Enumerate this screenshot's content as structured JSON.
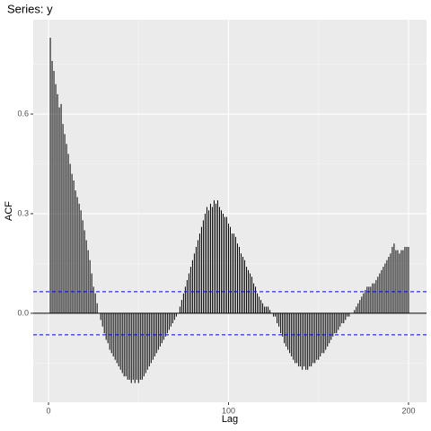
{
  "chart_data": {
    "type": "acf",
    "title": "Series: y",
    "xlabel": "Lag",
    "ylabel": "ACF",
    "x": [
      1,
      2,
      3,
      4,
      5,
      6,
      7,
      8,
      9,
      10,
      11,
      12,
      13,
      14,
      15,
      16,
      17,
      18,
      19,
      20,
      21,
      22,
      23,
      24,
      25,
      26,
      27,
      28,
      29,
      30,
      31,
      32,
      33,
      34,
      35,
      36,
      37,
      38,
      39,
      40,
      41,
      42,
      43,
      44,
      45,
      46,
      47,
      48,
      49,
      50,
      51,
      52,
      53,
      54,
      55,
      56,
      57,
      58,
      59,
      60,
      61,
      62,
      63,
      64,
      65,
      66,
      67,
      68,
      69,
      70,
      71,
      72,
      73,
      74,
      75,
      76,
      77,
      78,
      79,
      80,
      81,
      82,
      83,
      84,
      85,
      86,
      87,
      88,
      89,
      90,
      91,
      92,
      93,
      94,
      95,
      96,
      97,
      98,
      99,
      100,
      101,
      102,
      103,
      104,
      105,
      106,
      107,
      108,
      109,
      110,
      111,
      112,
      113,
      114,
      115,
      116,
      117,
      118,
      119,
      120,
      121,
      122,
      123,
      124,
      125,
      126,
      127,
      128,
      129,
      130,
      131,
      132,
      133,
      134,
      135,
      136,
      137,
      138,
      139,
      140,
      141,
      142,
      143,
      144,
      145,
      146,
      147,
      148,
      149,
      150,
      151,
      152,
      153,
      154,
      155,
      156,
      157,
      158,
      159,
      160,
      161,
      162,
      163,
      164,
      165,
      166,
      167,
      168,
      169,
      170,
      171,
      172,
      173,
      174,
      175,
      176,
      177,
      178,
      179,
      180,
      181,
      182,
      183,
      184,
      185,
      186,
      187,
      188,
      189,
      190,
      191,
      192,
      193,
      194,
      195,
      196,
      197,
      198,
      199,
      200
    ],
    "values": [
      0.83,
      0.76,
      0.73,
      0.69,
      0.66,
      0.62,
      0.63,
      0.57,
      0.54,
      0.51,
      0.48,
      0.45,
      0.42,
      0.4,
      0.37,
      0.35,
      0.33,
      0.31,
      0.28,
      0.25,
      0.22,
      0.19,
      0.16,
      0.12,
      0.08,
      0.06,
      0.03,
      0.0,
      -0.02,
      -0.04,
      -0.06,
      -0.08,
      -0.09,
      -0.11,
      -0.12,
      -0.13,
      -0.14,
      -0.15,
      -0.16,
      -0.17,
      -0.18,
      -0.19,
      -0.19,
      -0.2,
      -0.2,
      -0.21,
      -0.2,
      -0.21,
      -0.2,
      -0.21,
      -0.2,
      -0.2,
      -0.19,
      -0.18,
      -0.17,
      -0.16,
      -0.15,
      -0.14,
      -0.13,
      -0.12,
      -0.11,
      -0.1,
      -0.09,
      -0.08,
      -0.07,
      -0.06,
      -0.05,
      -0.04,
      -0.03,
      -0.02,
      -0.01,
      0.0,
      0.02,
      0.04,
      0.06,
      0.08,
      0.1,
      0.12,
      0.14,
      0.16,
      0.18,
      0.2,
      0.22,
      0.24,
      0.26,
      0.28,
      0.3,
      0.32,
      0.31,
      0.33,
      0.32,
      0.34,
      0.33,
      0.34,
      0.32,
      0.31,
      0.3,
      0.29,
      0.29,
      0.27,
      0.26,
      0.24,
      0.24,
      0.23,
      0.21,
      0.2,
      0.18,
      0.17,
      0.16,
      0.14,
      0.13,
      0.12,
      0.11,
      0.09,
      0.08,
      0.06,
      0.05,
      0.04,
      0.03,
      0.02,
      0.02,
      0.02,
      0.01,
      0.0,
      -0.01,
      -0.01,
      -0.03,
      -0.04,
      -0.06,
      -0.07,
      -0.09,
      -0.1,
      -0.11,
      -0.12,
      -0.13,
      -0.14,
      -0.15,
      -0.15,
      -0.16,
      -0.16,
      -0.17,
      -0.16,
      -0.17,
      -0.17,
      -0.16,
      -0.16,
      -0.15,
      -0.15,
      -0.14,
      -0.14,
      -0.13,
      -0.12,
      -0.12,
      -0.11,
      -0.1,
      -0.09,
      -0.08,
      -0.07,
      -0.06,
      -0.06,
      -0.05,
      -0.04,
      -0.03,
      -0.03,
      -0.02,
      -0.01,
      -0.01,
      0.0,
      0.0,
      0.01,
      0.02,
      0.03,
      0.04,
      0.05,
      0.06,
      0.07,
      0.08,
      0.08,
      0.08,
      0.09,
      0.09,
      0.1,
      0.11,
      0.12,
      0.13,
      0.14,
      0.15,
      0.16,
      0.17,
      0.18,
      0.2,
      0.21,
      0.19,
      0.19,
      0.18,
      0.19,
      0.19,
      0.2,
      0.2,
      0.2
    ],
    "color": "#000000",
    "xlim": [
      -8.5,
      210
    ],
    "xticks": [
      0,
      100,
      200
    ],
    "ylim": [
      -0.268,
      0.884
    ],
    "yticks": [
      {
        "value": 0,
        "label": "0.0"
      },
      0.3,
      0.6
    ],
    "conf_lines": [
      0.065,
      -0.065
    ],
    "conf_color": "#0000ff",
    "hline": 0,
    "grid": true
  }
}
